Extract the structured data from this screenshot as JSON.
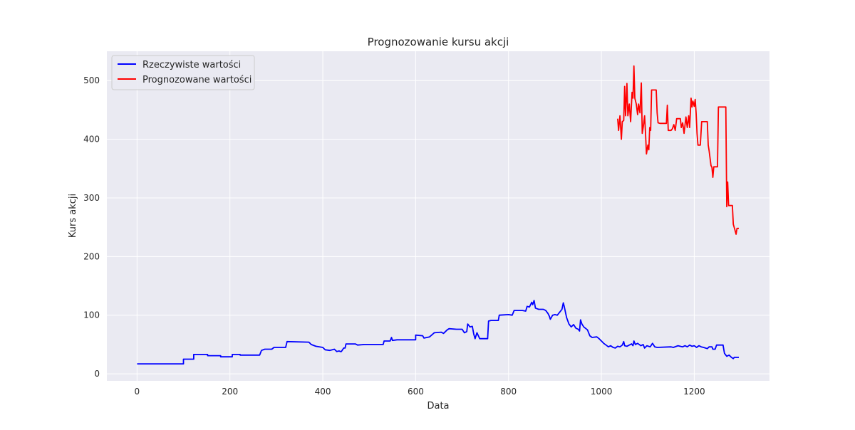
{
  "chart_data": {
    "type": "line",
    "title": "Prognozowanie kursu akcji",
    "xlabel": "Data",
    "ylabel": "Kurs akcji",
    "xlim": [
      -65,
      1362
    ],
    "ylim": [
      -12,
      550
    ],
    "xticks": [
      0,
      200,
      400,
      600,
      800,
      1000,
      1200
    ],
    "yticks": [
      0,
      100,
      200,
      300,
      400,
      500
    ],
    "grid": true,
    "legend_position": "top-left",
    "colors": {
      "background": "#eaeaf2",
      "grid": "#ffffff"
    },
    "series": [
      {
        "name": "Rzeczywiste wartości",
        "color": "#0000ff",
        "points": [
          [
            0,
            17
          ],
          [
            100,
            17
          ],
          [
            100,
            25
          ],
          [
            122,
            25
          ],
          [
            122,
            33
          ],
          [
            152,
            33
          ],
          [
            152,
            31
          ],
          [
            180,
            31
          ],
          [
            180,
            29
          ],
          [
            205,
            29
          ],
          [
            205,
            33
          ],
          [
            222,
            33
          ],
          [
            222,
            32
          ],
          [
            264,
            32
          ],
          [
            268,
            40
          ],
          [
            275,
            42
          ],
          [
            290,
            42
          ],
          [
            295,
            45
          ],
          [
            320,
            45
          ],
          [
            323,
            55
          ],
          [
            370,
            54
          ],
          [
            375,
            50
          ],
          [
            385,
            47
          ],
          [
            400,
            45
          ],
          [
            405,
            41
          ],
          [
            415,
            40
          ],
          [
            425,
            42
          ],
          [
            430,
            38
          ],
          [
            435,
            39
          ],
          [
            438,
            38
          ],
          [
            440,
            38
          ],
          [
            445,
            44
          ],
          [
            448,
            44
          ],
          [
            450,
            51
          ],
          [
            470,
            51
          ],
          [
            475,
            49
          ],
          [
            490,
            50
          ],
          [
            500,
            50
          ],
          [
            530,
            50
          ],
          [
            532,
            56
          ],
          [
            545,
            56
          ],
          [
            548,
            62
          ],
          [
            550,
            57
          ],
          [
            560,
            58
          ],
          [
            600,
            58
          ],
          [
            600,
            66
          ],
          [
            615,
            65
          ],
          [
            618,
            61
          ],
          [
            630,
            63
          ],
          [
            640,
            70
          ],
          [
            655,
            71
          ],
          [
            660,
            69
          ],
          [
            668,
            75
          ],
          [
            672,
            77
          ],
          [
            688,
            76
          ],
          [
            700,
            76
          ],
          [
            705,
            70
          ],
          [
            710,
            72
          ],
          [
            712,
            85
          ],
          [
            717,
            80
          ],
          [
            722,
            81
          ],
          [
            725,
            68
          ],
          [
            728,
            60
          ],
          [
            732,
            70
          ],
          [
            738,
            60
          ],
          [
            755,
            60
          ],
          [
            757,
            90
          ],
          [
            762,
            91
          ],
          [
            778,
            91
          ],
          [
            780,
            100
          ],
          [
            800,
            101
          ],
          [
            808,
            100
          ],
          [
            812,
            108
          ],
          [
            830,
            108
          ],
          [
            837,
            107
          ],
          [
            840,
            115
          ],
          [
            845,
            114
          ],
          [
            850,
            122
          ],
          [
            852,
            118
          ],
          [
            855,
            125
          ],
          [
            858,
            112
          ],
          [
            865,
            110
          ],
          [
            875,
            110
          ],
          [
            880,
            108
          ],
          [
            885,
            103
          ],
          [
            888,
            98
          ],
          [
            890,
            93
          ],
          [
            895,
            100
          ],
          [
            900,
            101
          ],
          [
            905,
            100
          ],
          [
            915,
            110
          ],
          [
            918,
            121
          ],
          [
            920,
            115
          ],
          [
            925,
            96
          ],
          [
            930,
            85
          ],
          [
            935,
            80
          ],
          [
            940,
            84
          ],
          [
            945,
            78
          ],
          [
            950,
            76
          ],
          [
            953,
            73
          ],
          [
            955,
            92
          ],
          [
            958,
            85
          ],
          [
            962,
            80
          ],
          [
            970,
            75
          ],
          [
            975,
            65
          ],
          [
            980,
            62
          ],
          [
            990,
            63
          ],
          [
            995,
            60
          ],
          [
            1000,
            56
          ],
          [
            1005,
            52
          ],
          [
            1010,
            49
          ],
          [
            1015,
            46
          ],
          [
            1020,
            48
          ],
          [
            1025,
            45
          ],
          [
            1030,
            44
          ],
          [
            1035,
            47
          ],
          [
            1040,
            46
          ],
          [
            1045,
            49
          ],
          [
            1048,
            55
          ],
          [
            1050,
            48
          ],
          [
            1055,
            47
          ],
          [
            1060,
            49
          ],
          [
            1065,
            51
          ],
          [
            1068,
            48
          ],
          [
            1070,
            56
          ],
          [
            1073,
            50
          ],
          [
            1078,
            52
          ],
          [
            1085,
            48
          ],
          [
            1090,
            50
          ],
          [
            1093,
            44
          ],
          [
            1098,
            48
          ],
          [
            1105,
            46
          ],
          [
            1110,
            52
          ],
          [
            1115,
            46
          ],
          [
            1120,
            45
          ],
          [
            1150,
            46
          ],
          [
            1155,
            45
          ],
          [
            1165,
            48
          ],
          [
            1175,
            46
          ],
          [
            1180,
            48
          ],
          [
            1185,
            46
          ],
          [
            1190,
            49
          ],
          [
            1195,
            47
          ],
          [
            1200,
            48
          ],
          [
            1205,
            45
          ],
          [
            1210,
            48
          ],
          [
            1215,
            46
          ],
          [
            1220,
            45
          ],
          [
            1228,
            43
          ],
          [
            1232,
            46
          ],
          [
            1238,
            46
          ],
          [
            1240,
            42
          ],
          [
            1245,
            42
          ],
          [
            1248,
            49
          ],
          [
            1262,
            49
          ],
          [
            1265,
            35
          ],
          [
            1270,
            30
          ],
          [
            1275,
            32
          ],
          [
            1280,
            28
          ],
          [
            1284,
            26
          ],
          [
            1286,
            28
          ],
          [
            1296,
            28
          ]
        ]
      },
      {
        "name": "Prognozowane wartości",
        "color": "#ff0000",
        "points": [
          [
            1035,
            435
          ],
          [
            1037,
            415
          ],
          [
            1040,
            440
          ],
          [
            1043,
            400
          ],
          [
            1045,
            430
          ],
          [
            1048,
            432
          ],
          [
            1050,
            490
          ],
          [
            1052,
            440
          ],
          [
            1055,
            495
          ],
          [
            1057,
            440
          ],
          [
            1060,
            460
          ],
          [
            1063,
            430
          ],
          [
            1066,
            480
          ],
          [
            1068,
            470
          ],
          [
            1070,
            525
          ],
          [
            1072,
            470
          ],
          [
            1075,
            460
          ],
          [
            1078,
            442
          ],
          [
            1080,
            460
          ],
          [
            1083,
            445
          ],
          [
            1086,
            496
          ],
          [
            1088,
            410
          ],
          [
            1090,
            420
          ],
          [
            1093,
            440
          ],
          [
            1095,
            410
          ],
          [
            1097,
            375
          ],
          [
            1100,
            390
          ],
          [
            1102,
            382
          ],
          [
            1104,
            420
          ],
          [
            1106,
            415
          ],
          [
            1108,
            484
          ],
          [
            1118,
            484
          ],
          [
            1120,
            445
          ],
          [
            1122,
            428
          ],
          [
            1126,
            427
          ],
          [
            1140,
            427
          ],
          [
            1142,
            458
          ],
          [
            1144,
            415
          ],
          [
            1150,
            415
          ],
          [
            1153,
            418
          ],
          [
            1156,
            425
          ],
          [
            1159,
            415
          ],
          [
            1162,
            435
          ],
          [
            1170,
            435
          ],
          [
            1172,
            420
          ],
          [
            1175,
            428
          ],
          [
            1178,
            410
          ],
          [
            1182,
            438
          ],
          [
            1185,
            420
          ],
          [
            1188,
            440
          ],
          [
            1190,
            420
          ],
          [
            1193,
            470
          ],
          [
            1195,
            455
          ],
          [
            1197,
            465
          ],
          [
            1200,
            456
          ],
          [
            1202,
            468
          ],
          [
            1204,
            445
          ],
          [
            1206,
            410
          ],
          [
            1208,
            390
          ],
          [
            1213,
            390
          ],
          [
            1216,
            430
          ],
          [
            1228,
            430
          ],
          [
            1230,
            390
          ],
          [
            1232,
            380
          ],
          [
            1236,
            355
          ],
          [
            1238,
            352
          ],
          [
            1240,
            335
          ],
          [
            1242,
            353
          ],
          [
            1250,
            353
          ],
          [
            1252,
            455
          ],
          [
            1268,
            455
          ],
          [
            1270,
            285
          ],
          [
            1272,
            327
          ],
          [
            1274,
            287
          ],
          [
            1282,
            287
          ],
          [
            1284,
            255
          ],
          [
            1287,
            247
          ],
          [
            1290,
            238
          ],
          [
            1292,
            248
          ],
          [
            1296,
            248
          ]
        ]
      }
    ]
  }
}
